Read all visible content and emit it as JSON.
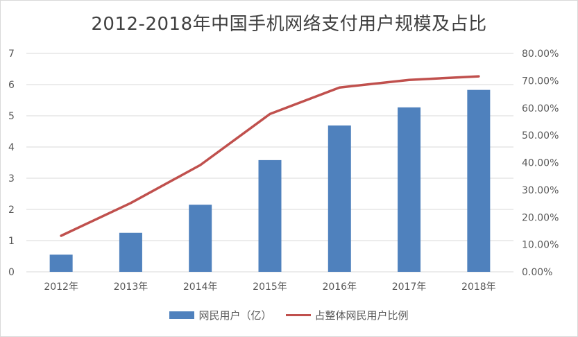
{
  "chart_data": {
    "type": "bar",
    "title": "2012-2018年中国手机网络支付用户规模及占比",
    "categories": [
      "2012年",
      "2013年",
      "2014年",
      "2015年",
      "2016年",
      "2017年",
      "2018年"
    ],
    "series": [
      {
        "name": "网民用户（亿）",
        "type": "bar",
        "axis": "left",
        "color": "#4f81bd",
        "values": [
          0.55,
          1.25,
          2.15,
          3.58,
          4.69,
          5.27,
          5.83
        ]
      },
      {
        "name": "占整体网民用户比例",
        "type": "line",
        "axis": "right",
        "color": "#c0504d",
        "values": [
          0.132,
          0.252,
          0.391,
          0.578,
          0.675,
          0.703,
          0.716
        ]
      }
    ],
    "y_left": {
      "ylim": [
        0,
        7
      ],
      "ticks": [
        "0",
        "1",
        "2",
        "3",
        "4",
        "5",
        "6",
        "7"
      ]
    },
    "y_right": {
      "ylim": [
        0,
        0.8
      ],
      "ticks": [
        "0.00%",
        "10.00%",
        "20.00%",
        "30.00%",
        "40.00%",
        "50.00%",
        "60.00%",
        "70.00%",
        "80.00%"
      ]
    },
    "grid": true,
    "legend_position": "bottom"
  }
}
